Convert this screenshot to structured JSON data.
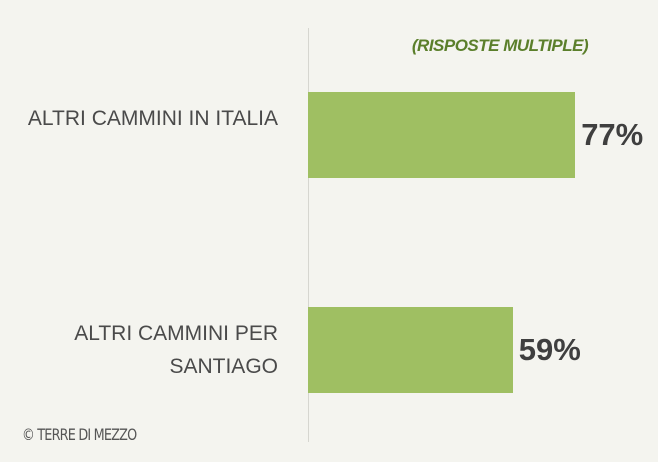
{
  "chart_data": {
    "type": "bar",
    "orientation": "horizontal",
    "subtitle": "(RISPOSTE MULTIPLE)",
    "categories": [
      "ALTRI CAMMINI IN ITALIA",
      "ALTRI CAMMINI PER SANTIAGO"
    ],
    "values": [
      77,
      59
    ],
    "value_labels": [
      "77%",
      "59%"
    ],
    "color": "#9fbf62",
    "xlim": [
      0,
      100
    ],
    "source": "© TERRE DI MEZZO"
  }
}
